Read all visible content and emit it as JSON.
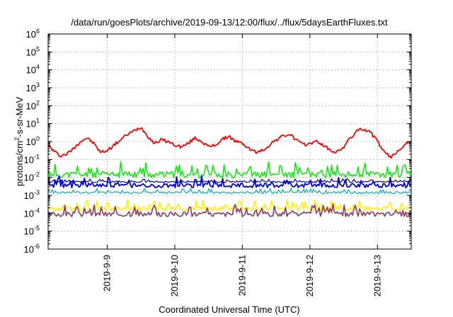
{
  "chart_data": {
    "type": "line",
    "title": "/data/run/goesPlots/archive/2019-09-13/12:00/flux/../flux/5daysEarthFluxes.txt",
    "xlabel": "Coordinated Universal Time (UTC)",
    "ylabel_parts": {
      "base": "protons/cm",
      "sup": "2",
      "rest": "-s-sr-MeV"
    },
    "yscale": "log",
    "ylim_exp": [
      -6,
      6
    ],
    "y_ticks": [
      {
        "base": "10",
        "exp": "6"
      },
      {
        "base": "10",
        "exp": "5"
      },
      {
        "base": "10",
        "exp": "4"
      },
      {
        "base": "10",
        "exp": "3"
      },
      {
        "base": "10",
        "exp": "2"
      },
      {
        "base": "10",
        "exp": "1"
      },
      {
        "base": "10",
        "exp": "0"
      },
      {
        "base": "10",
        "exp": "-1"
      },
      {
        "base": "10",
        "exp": "-2"
      },
      {
        "base": "10",
        "exp": "-3"
      },
      {
        "base": "10",
        "exp": "-4"
      },
      {
        "base": "10",
        "exp": "-5"
      },
      {
        "base": "10",
        "exp": "-6"
      }
    ],
    "x_range": [
      "2019-09-08 03:00",
      "2019-09-13 12:00"
    ],
    "x_ticks": [
      "2019-9-9",
      "2019-9-10",
      "2019-9-11",
      "2019-9-12",
      "2019-9-13"
    ],
    "x_tick_days": [
      1,
      2,
      3,
      4,
      5
    ],
    "x_range_days": [
      0.125,
      5.5
    ],
    "grid": true,
    "legend": "none",
    "series": [
      {
        "color": "#ff0000",
        "width": 1.8,
        "x_days": [
          0.13,
          0.2,
          0.3,
          0.4,
          0.5,
          0.6,
          0.7,
          0.8,
          0.9,
          1.0,
          1.1,
          1.2,
          1.3,
          1.4,
          1.5,
          1.6,
          1.7,
          1.8,
          1.9,
          2.0,
          2.1,
          2.2,
          2.3,
          2.4,
          2.5,
          2.6,
          2.7,
          2.8,
          2.9,
          3.0,
          3.1,
          3.2,
          3.3,
          3.4,
          3.5,
          3.6,
          3.7,
          3.8,
          3.9,
          4.0,
          4.1,
          4.2,
          4.3,
          4.4,
          4.5,
          4.6,
          4.7,
          4.8,
          4.9,
          5.0,
          5.1,
          5.2,
          5.3,
          5.4,
          5.5
        ],
        "log10_y": [
          -0.2,
          -0.5,
          -0.8,
          -0.7,
          -0.4,
          0.0,
          0.2,
          -0.1,
          -0.6,
          -0.5,
          -0.2,
          0.1,
          0.4,
          0.6,
          0.8,
          0.3,
          -0.1,
          0.1,
          0.0,
          -0.2,
          -0.3,
          -0.1,
          0.2,
          0.0,
          -0.3,
          -0.2,
          0.1,
          0.3,
          0.0,
          -0.1,
          -0.4,
          -0.6,
          -0.5,
          -0.2,
          0.1,
          0.3,
          0.4,
          0.1,
          -0.2,
          -0.1,
          0.0,
          -0.2,
          -0.5,
          -0.6,
          -0.3,
          0.2,
          0.6,
          0.7,
          0.5,
          0.0,
          -0.6,
          -0.9,
          -0.5,
          -0.2,
          0.0
        ]
      },
      {
        "color": "#00ee00",
        "width": 1.5,
        "base_log10": -1.85,
        "amp": 0.35,
        "seed": 11
      },
      {
        "color": "#0000dd",
        "width": 1.8,
        "base_log10": -2.45,
        "amp": 0.25,
        "seed": 23
      },
      {
        "color": "#0000aa",
        "width": 1.2,
        "base_log10": -2.25,
        "amp": 0.08,
        "seed": 31
      },
      {
        "color": "#00b0b0",
        "width": 1.2,
        "base_log10": -2.85,
        "amp": 0.12,
        "seed": 41
      },
      {
        "color": "#ffee00",
        "width": 1.6,
        "base_log10": -3.75,
        "amp": 0.25,
        "seed": 53
      },
      {
        "color": "#8b3a62",
        "width": 1.6,
        "base_log10": -4.05,
        "amp": 0.28,
        "seed": 67
      }
    ]
  }
}
